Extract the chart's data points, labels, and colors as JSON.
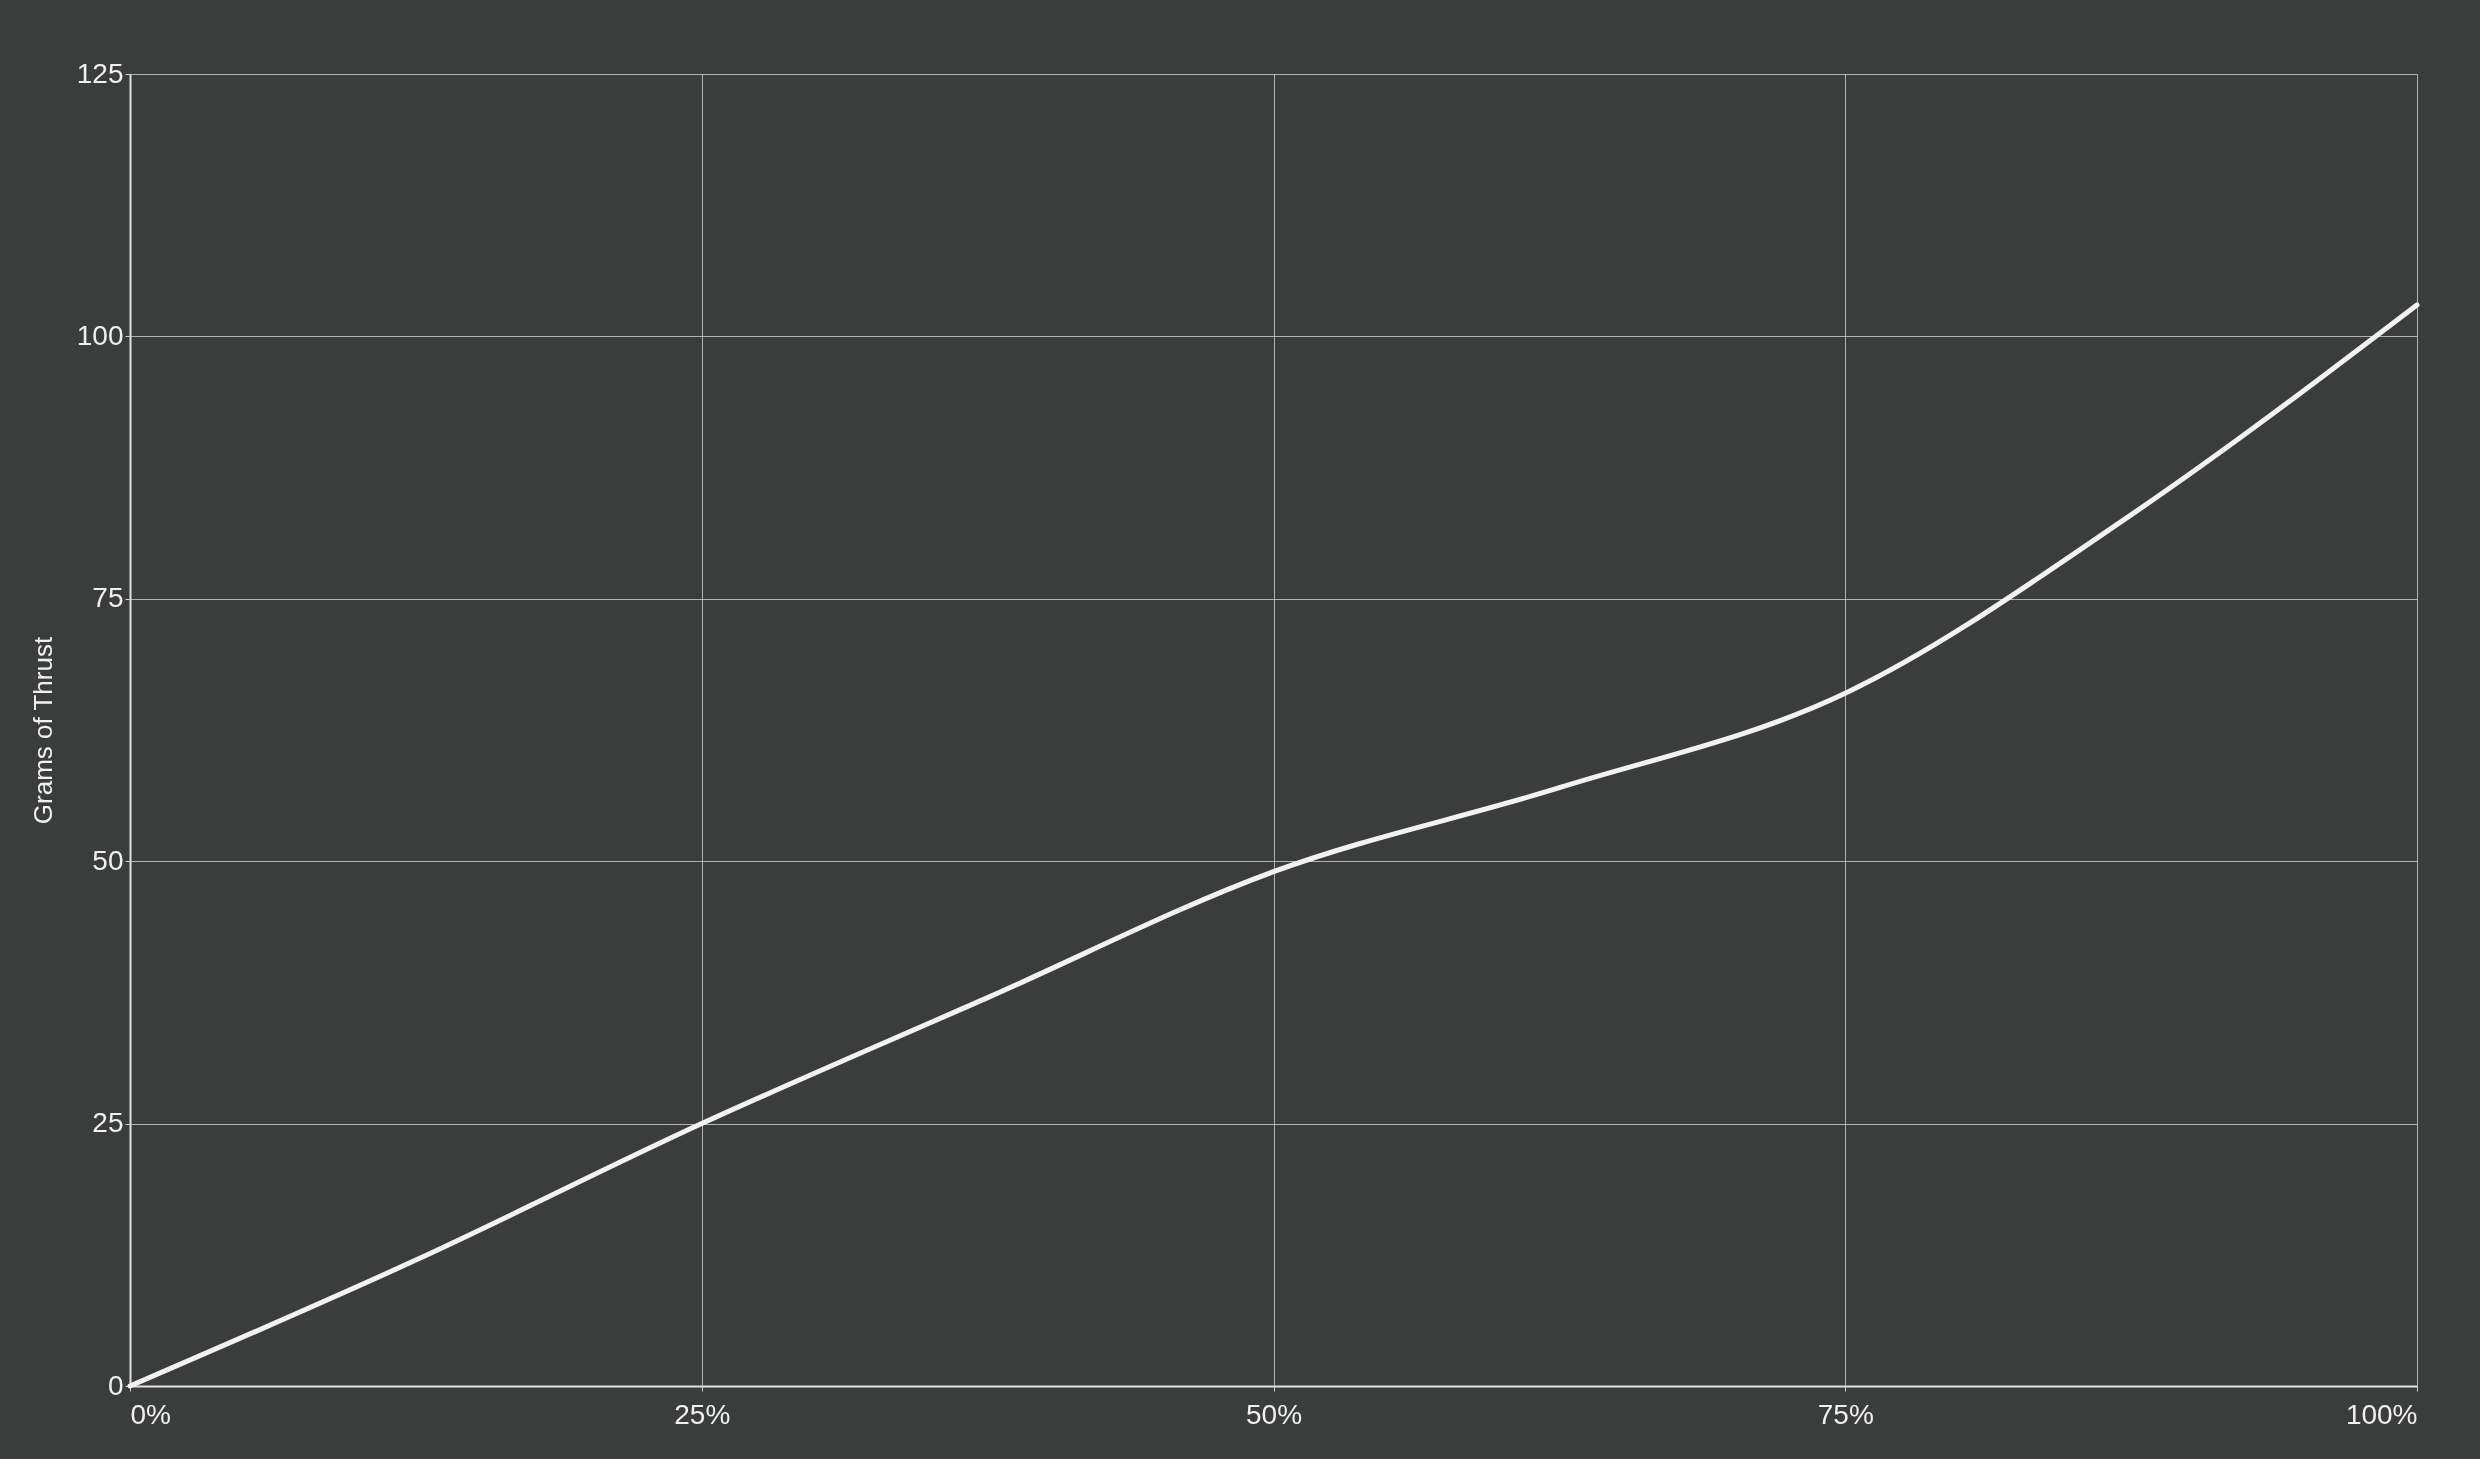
{
  "chart_data": {
    "type": "line",
    "ylabel": "Grams of Thrust",
    "x": [
      0,
      12.5,
      25,
      37.5,
      50,
      62.5,
      75,
      87.5,
      100
    ],
    "series": [
      {
        "color": "#f2f2f2",
        "values": [
          0,
          12,
          25,
          37,
          49,
          57,
          66,
          83,
          103
        ]
      }
    ],
    "xlim": [
      0,
      100
    ],
    "xticks": [
      {
        "value": 0,
        "label": "0%"
      },
      {
        "value": 25,
        "label": "25%"
      },
      {
        "value": 50,
        "label": "50%"
      },
      {
        "value": 75,
        "label": "75%"
      },
      {
        "value": 100,
        "label": "100%"
      }
    ],
    "ylim": [
      0,
      125
    ],
    "yticks": [
      0,
      25,
      50,
      75,
      100,
      125
    ],
    "grid": true,
    "marker": "none",
    "line_style": "solid"
  }
}
